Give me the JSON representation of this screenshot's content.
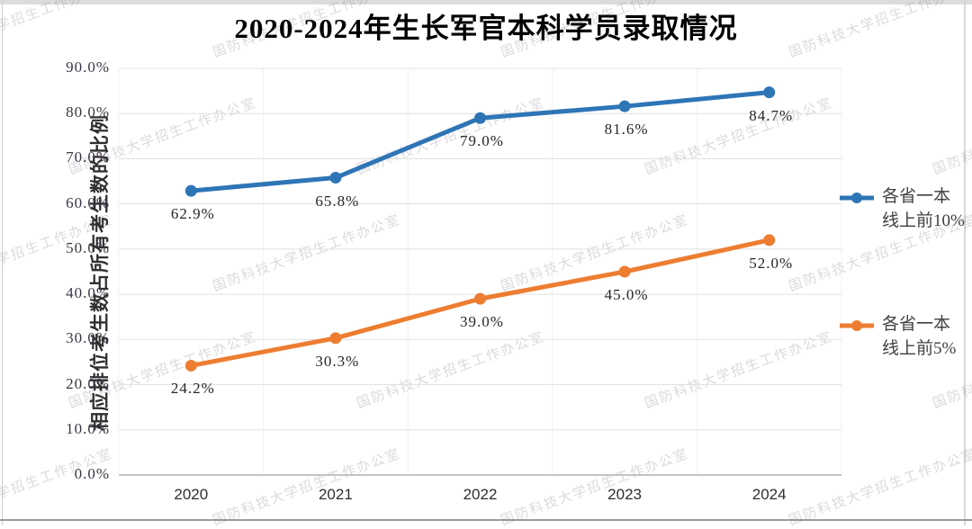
{
  "page": {
    "watermark_text": "国防科技大学招生工作办公室"
  },
  "chart_data": {
    "type": "line",
    "title": "2020-2024年生长军官本科学员录取情况",
    "xlabel": "",
    "ylabel": "相应排位考生数占所有考生数的比例",
    "categories": [
      "2020",
      "2021",
      "2022",
      "2023",
      "2024"
    ],
    "series": [
      {
        "name": "各省一本线上前10%",
        "legend_lines": [
          "各省一本",
          "线上前10%"
        ],
        "color": "#2E75B6",
        "values": [
          62.9,
          65.8,
          79.0,
          81.6,
          84.7
        ],
        "point_labels": [
          "62.9%",
          "65.8%",
          "79.0%",
          "81.6%",
          "84.7%"
        ]
      },
      {
        "name": "各省一本线上前5%",
        "legend_lines": [
          "各省一本",
          "线上前5%"
        ],
        "color": "#ED7D31",
        "values": [
          24.2,
          30.3,
          39.0,
          45.0,
          52.0
        ],
        "point_labels": [
          "24.2%",
          "30.3%",
          "39.0%",
          "45.0%",
          "52.0%"
        ]
      }
    ],
    "y_axis": {
      "min": 0,
      "max": 90,
      "step": 10,
      "tick_labels": [
        "0.0%",
        "10.0%",
        "20.0%",
        "30.0%",
        "40.0%",
        "50.0%",
        "60.0%",
        "70.0%",
        "80.0%",
        "90.0%"
      ]
    },
    "grid": true,
    "legend_position": "right"
  }
}
